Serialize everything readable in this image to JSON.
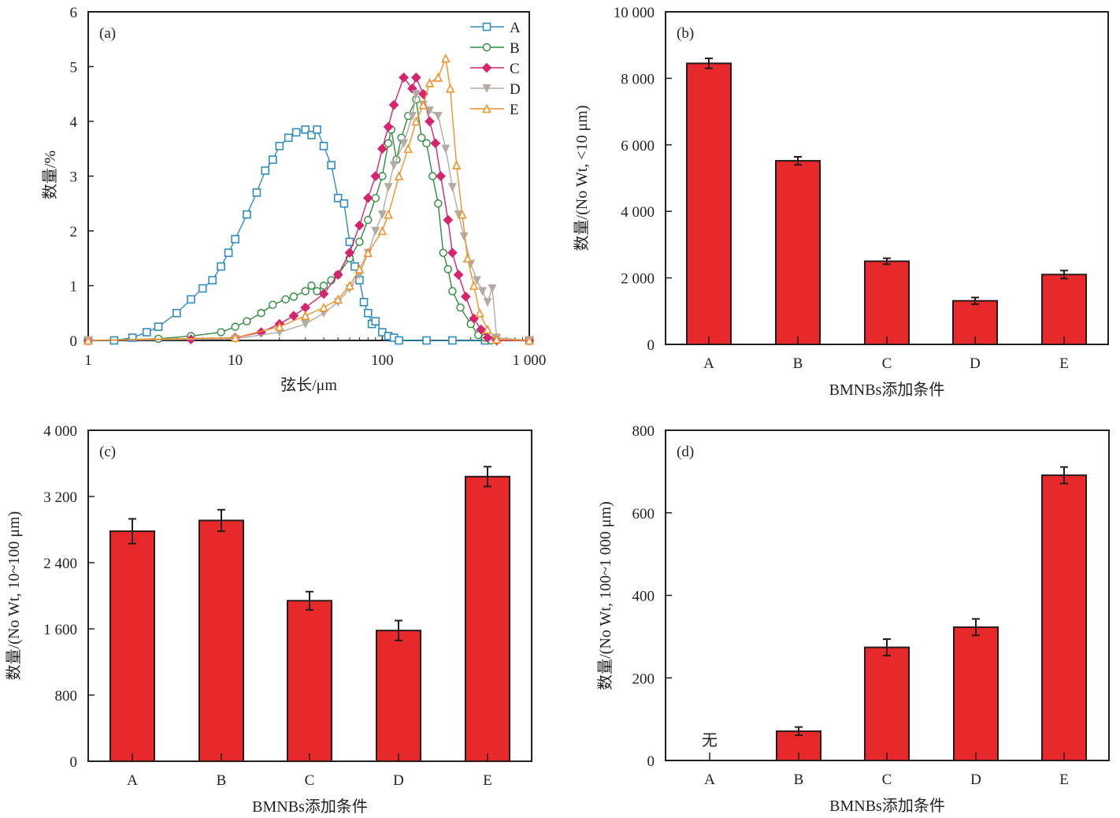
{
  "chart_data": [
    {
      "panel": "(a)",
      "type": "line",
      "xlabel": "弦长/μm",
      "ylabel": "数量/%",
      "xscale": "log",
      "xlim": [
        1,
        1000
      ],
      "ylim": [
        0,
        6
      ],
      "xticks": [
        "1",
        "10",
        "100",
        "1 000"
      ],
      "xtick_values": [
        1,
        10,
        100,
        1000
      ],
      "yticks": [
        "0",
        "1",
        "2",
        "3",
        "4",
        "5",
        "6"
      ],
      "legend": "top-right",
      "series": [
        {
          "name": "A",
          "color": "#2f8cc0",
          "marker": "square-open",
          "points": [
            [
              1,
              0
            ],
            [
              1.5,
              0
            ],
            [
              2,
              0.05
            ],
            [
              2.5,
              0.15
            ],
            [
              3,
              0.25
            ],
            [
              4,
              0.5
            ],
            [
              5,
              0.75
            ],
            [
              6,
              0.95
            ],
            [
              7,
              1.1
            ],
            [
              8,
              1.35
            ],
            [
              9,
              1.6
            ],
            [
              10,
              1.85
            ],
            [
              12,
              2.3
            ],
            [
              14,
              2.7
            ],
            [
              16,
              3.1
            ],
            [
              18,
              3.3
            ],
            [
              20,
              3.55
            ],
            [
              23,
              3.7
            ],
            [
              26,
              3.8
            ],
            [
              30,
              3.85
            ],
            [
              33,
              3.75
            ],
            [
              36,
              3.85
            ],
            [
              40,
              3.55
            ],
            [
              45,
              3.2
            ],
            [
              50,
              2.6
            ],
            [
              55,
              2.5
            ],
            [
              60,
              1.8
            ],
            [
              65,
              1.35
            ],
            [
              70,
              1.1
            ],
            [
              75,
              0.7
            ],
            [
              80,
              0.5
            ],
            [
              85,
              0.3
            ],
            [
              90,
              0.35
            ],
            [
              100,
              0.15
            ],
            [
              110,
              0.08
            ],
            [
              120,
              0.05
            ],
            [
              130,
              0
            ],
            [
              200,
              0
            ],
            [
              300,
              0
            ],
            [
              500,
              0
            ],
            [
              1000,
              0
            ]
          ]
        },
        {
          "name": "B",
          "color": "#2e8b3e",
          "marker": "circle-open",
          "points": [
            [
              1,
              0
            ],
            [
              3,
              0.03
            ],
            [
              5,
              0.08
            ],
            [
              8,
              0.15
            ],
            [
              10,
              0.25
            ],
            [
              12,
              0.35
            ],
            [
              15,
              0.5
            ],
            [
              18,
              0.65
            ],
            [
              22,
              0.75
            ],
            [
              25,
              0.8
            ],
            [
              30,
              0.9
            ],
            [
              33,
              1.0
            ],
            [
              36,
              0.9
            ],
            [
              40,
              1.0
            ],
            [
              45,
              1.1
            ],
            [
              50,
              1.2
            ],
            [
              60,
              1.5
            ],
            [
              70,
              1.8
            ],
            [
              80,
              2.2
            ],
            [
              90,
              2.6
            ],
            [
              100,
              3.0
            ],
            [
              110,
              3.6
            ],
            [
              115,
              3.85
            ],
            [
              125,
              3.3
            ],
            [
              135,
              3.7
            ],
            [
              150,
              4.1
            ],
            [
              170,
              4.4
            ],
            [
              185,
              3.7
            ],
            [
              200,
              3.6
            ],
            [
              220,
              3.0
            ],
            [
              240,
              2.5
            ],
            [
              260,
              1.6
            ],
            [
              280,
              1.3
            ],
            [
              300,
              0.9
            ],
            [
              340,
              0.6
            ],
            [
              400,
              0.3
            ],
            [
              450,
              0.1
            ],
            [
              500,
              0.05
            ],
            [
              550,
              0
            ],
            [
              1000,
              0
            ]
          ]
        },
        {
          "name": "C",
          "color": "#d6246e",
          "marker": "diamond-filled",
          "points": [
            [
              1,
              0
            ],
            [
              5,
              0.02
            ],
            [
              10,
              0.05
            ],
            [
              15,
              0.15
            ],
            [
              20,
              0.3
            ],
            [
              25,
              0.45
            ],
            [
              30,
              0.6
            ],
            [
              40,
              0.85
            ],
            [
              50,
              1.2
            ],
            [
              60,
              1.6
            ],
            [
              70,
              2.1
            ],
            [
              80,
              2.6
            ],
            [
              90,
              3.0
            ],
            [
              100,
              3.5
            ],
            [
              110,
              3.9
            ],
            [
              120,
              4.3
            ],
            [
              140,
              4.8
            ],
            [
              160,
              4.6
            ],
            [
              170,
              4.8
            ],
            [
              190,
              4.5
            ],
            [
              210,
              4.0
            ],
            [
              230,
              3.6
            ],
            [
              250,
              3.0
            ],
            [
              280,
              2.2
            ],
            [
              300,
              1.6
            ],
            [
              330,
              1.2
            ],
            [
              370,
              0.8
            ],
            [
              420,
              0.4
            ],
            [
              470,
              0.2
            ],
            [
              520,
              0.05
            ],
            [
              600,
              0
            ],
            [
              1000,
              0
            ]
          ]
        },
        {
          "name": "D",
          "color": "#b3aaa2",
          "marker": "triangle-down",
          "points": [
            [
              1,
              0
            ],
            [
              10,
              0.03
            ],
            [
              20,
              0.15
            ],
            [
              30,
              0.3
            ],
            [
              40,
              0.5
            ],
            [
              50,
              0.7
            ],
            [
              60,
              0.95
            ],
            [
              70,
              1.2
            ],
            [
              80,
              1.6
            ],
            [
              90,
              2.0
            ],
            [
              100,
              2.3
            ],
            [
              110,
              2.8
            ],
            [
              120,
              3.2
            ],
            [
              140,
              3.6
            ],
            [
              160,
              4.1
            ],
            [
              170,
              4.5
            ],
            [
              190,
              4.3
            ],
            [
              210,
              4.2
            ],
            [
              240,
              4.1
            ],
            [
              270,
              3.5
            ],
            [
              300,
              2.8
            ],
            [
              330,
              2.3
            ],
            [
              360,
              1.9
            ],
            [
              400,
              1.4
            ],
            [
              440,
              1.1
            ],
            [
              480,
              0.9
            ],
            [
              520,
              0.7
            ],
            [
              560,
              0.95
            ],
            [
              600,
              0.05
            ],
            [
              1000,
              0
            ]
          ]
        },
        {
          "name": "E",
          "color": "#f0922a",
          "marker": "triangle-up-open",
          "points": [
            [
              1,
              0
            ],
            [
              10,
              0.05
            ],
            [
              20,
              0.25
            ],
            [
              30,
              0.45
            ],
            [
              40,
              0.6
            ],
            [
              50,
              0.75
            ],
            [
              60,
              1.0
            ],
            [
              70,
              1.3
            ],
            [
              80,
              1.6
            ],
            [
              100,
              2.0
            ],
            [
              110,
              2.3
            ],
            [
              130,
              3.0
            ],
            [
              150,
              3.5
            ],
            [
              170,
              4.0
            ],
            [
              190,
              4.3
            ],
            [
              210,
              4.7
            ],
            [
              240,
              4.8
            ],
            [
              270,
              5.15
            ],
            [
              290,
              4.6
            ],
            [
              320,
              3.2
            ],
            [
              350,
              2.3
            ],
            [
              380,
              1.5
            ],
            [
              420,
              1.0
            ],
            [
              460,
              0.5
            ],
            [
              520,
              0.2
            ],
            [
              600,
              0.02
            ],
            [
              1000,
              0
            ]
          ]
        }
      ]
    },
    {
      "panel": "(b)",
      "type": "bar",
      "categories": [
        "A",
        "B",
        "C",
        "D",
        "E"
      ],
      "values": [
        8450,
        5520,
        2500,
        1310,
        2100
      ],
      "errors": [
        150,
        120,
        90,
        100,
        120
      ],
      "xlabel": "BMNBs添加条件",
      "ylabel": "数量/(No Wt, <10 μm)",
      "ylim": [
        0,
        10000
      ],
      "yticks": [
        "0",
        "2 000",
        "4 000",
        "6 000",
        "8 000",
        "10 000"
      ],
      "ytick_values": [
        0,
        2000,
        4000,
        6000,
        8000,
        10000
      ],
      "color": "#e8292b"
    },
    {
      "panel": "(c)",
      "type": "bar",
      "categories": [
        "A",
        "B",
        "C",
        "D",
        "E"
      ],
      "values": [
        2780,
        2910,
        1940,
        1580,
        3440
      ],
      "errors": [
        150,
        130,
        110,
        120,
        120
      ],
      "xlabel": "BMNBs添加条件",
      "ylabel": "数量/(No Wt, 10~100 μm)",
      "ylim": [
        0,
        4000
      ],
      "yticks": [
        "0",
        "800",
        "1 600",
        "2 400",
        "3 200",
        "4 000"
      ],
      "ytick_values": [
        0,
        800,
        1600,
        2400,
        3200,
        4000
      ],
      "color": "#e8292b"
    },
    {
      "panel": "(d)",
      "type": "bar",
      "categories": [
        "A",
        "B",
        "C",
        "D",
        "E"
      ],
      "values": [
        null,
        71,
        274,
        323,
        691
      ],
      "errors": [
        null,
        10,
        20,
        20,
        20
      ],
      "annotation": "无",
      "xlabel": "BMNBs添加条件",
      "ylabel": "数量/(No Wt, 100~1 000 μm)",
      "ylim": [
        0,
        800
      ],
      "yticks": [
        "0",
        "200",
        "400",
        "600",
        "800"
      ],
      "ytick_values": [
        0,
        200,
        400,
        600,
        800
      ],
      "color": "#e8292b"
    }
  ]
}
